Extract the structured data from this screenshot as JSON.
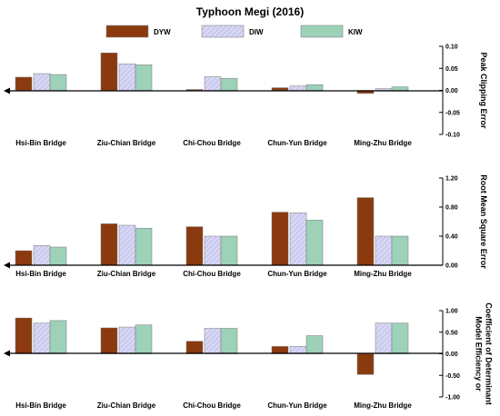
{
  "title": "Typhoon Megi (2016)",
  "colors": {
    "DYW": "#8B3A0F",
    "DIW": "#D8D8F4",
    "KIW": "#9DD1B8"
  },
  "chart_data": {
    "type": "bar",
    "title": "Typhoon Megi (2016)",
    "legend": {
      "entries": [
        "DYW",
        "DIW",
        "KIW"
      ],
      "placement": "top"
    },
    "categories": [
      "Hsi-Bin Bridge",
      "Ziu-Chian Bridge",
      "Chi-Chou Bridge",
      "Chun-Yun Bridge",
      "Ming-Zhu Bridge"
    ],
    "panels": [
      {
        "ylabel": [
          "Peak Clipping Error"
        ],
        "ylim": [
          -0.1,
          0.1
        ],
        "ticks": [
          "0.10",
          "0.05",
          "0.00",
          "-0.05",
          "-0.10"
        ],
        "series": [
          {
            "name": "DYW",
            "values": [
              0.03,
              0.085,
              0.002,
              0.006,
              -0.007
            ]
          },
          {
            "name": "DIW",
            "values": [
              0.038,
              0.06,
              0.031,
              0.01,
              0.004
            ]
          },
          {
            "name": "KIW",
            "values": [
              0.036,
              0.058,
              0.027,
              0.013,
              0.008
            ]
          }
        ]
      },
      {
        "ylabel": [
          "Root Mean Square Error"
        ],
        "ylim": [
          0,
          1.2
        ],
        "ticks": [
          "1.20",
          "0.80",
          "0.40",
          "0.00"
        ],
        "series": [
          {
            "name": "DYW",
            "values": [
              0.2,
              0.57,
              0.53,
              0.73,
              0.93
            ]
          },
          {
            "name": "DIW",
            "values": [
              0.27,
              0.55,
              0.4,
              0.72,
              0.4
            ]
          },
          {
            "name": "KIW",
            "values": [
              0.25,
              0.51,
              0.4,
              0.62,
              0.4
            ]
          }
        ]
      },
      {
        "ylabel": [
          "Model Efficiency or",
          "Coefficient of Determinant"
        ],
        "ylim": [
          -1,
          1
        ],
        "ticks": [
          "1.00",
          "0.50",
          "0.00",
          "-0.50",
          "-1.00"
        ],
        "series": [
          {
            "name": "DYW",
            "values": [
              0.83,
              0.6,
              0.29,
              0.17,
              -0.48
            ]
          },
          {
            "name": "DIW",
            "values": [
              0.71,
              0.62,
              0.59,
              0.17,
              0.71
            ]
          },
          {
            "name": "KIW",
            "values": [
              0.77,
              0.67,
              0.59,
              0.42,
              0.71
            ]
          }
        ]
      }
    ]
  }
}
